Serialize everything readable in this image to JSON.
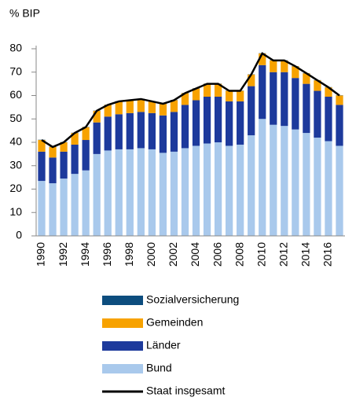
{
  "chart_data": {
    "type": "bar",
    "stacked": true,
    "y_label": "% BIP",
    "categories": [
      "1990",
      null,
      "1992",
      null,
      "1994",
      null,
      "1996",
      null,
      "1998",
      null,
      "2000",
      null,
      "2002",
      null,
      "2004",
      null,
      "2006",
      null,
      "2008",
      null,
      "2010",
      null,
      "2012",
      null,
      "2014",
      null,
      "2016",
      null
    ],
    "series": [
      {
        "name": "Bund",
        "color": "#a9c9ec",
        "values": [
          23.5,
          22.5,
          24.5,
          26.5,
          28,
          35,
          36.5,
          37,
          37,
          37.5,
          37,
          35.5,
          36,
          37.5,
          38.5,
          39.5,
          40,
          38.5,
          39,
          43,
          50,
          47.5,
          47,
          45.5,
          44,
          42,
          40.5,
          38.5
        ]
      },
      {
        "name": "Länder",
        "color": "#1d3a9c",
        "values": [
          12.5,
          11,
          11.5,
          12.5,
          13,
          13.5,
          14.5,
          15,
          15.5,
          15.5,
          15.5,
          16,
          17,
          18.5,
          19.5,
          20,
          19.5,
          19,
          18.5,
          21,
          23,
          22.5,
          23,
          22,
          21,
          20,
          19,
          17.5
        ]
      },
      {
        "name": "Gemeinden",
        "color": "#f7a200",
        "values": [
          5,
          4.5,
          4,
          5,
          5.5,
          5,
          5,
          5.5,
          5.5,
          5.5,
          5,
          5,
          5,
          5,
          5,
          5.5,
          5.5,
          4.5,
          4.5,
          5,
          5,
          5,
          5,
          5,
          4.5,
          4.5,
          4,
          4
        ]
      },
      {
        "name": "Sozialversicherung",
        "color": "#0d4d7e",
        "values": [
          0.1,
          0.1,
          0.1,
          0.1,
          0.1,
          0.1,
          0.1,
          0.1,
          0.1,
          0.1,
          0.1,
          0.1,
          0.1,
          0.1,
          0.1,
          0.1,
          0.1,
          0.1,
          0.1,
          0.1,
          0.1,
          0.1,
          0.1,
          0.1,
          0.1,
          0.1,
          0.1,
          0.1
        ]
      }
    ],
    "line": {
      "name": "Staat insgesamt",
      "color": "#000000",
      "values": [
        41,
        38,
        40,
        44,
        46.5,
        53.5,
        56,
        57.5,
        58,
        58.5,
        57.5,
        56.5,
        58,
        61,
        63,
        65,
        65,
        62,
        62,
        69,
        78,
        75,
        75,
        72.5,
        69.5,
        66.5,
        63.5,
        60
      ]
    },
    "ylim": [
      0,
      80
    ],
    "yticks": [
      0,
      10,
      20,
      30,
      40,
      50,
      60,
      70,
      80
    ]
  }
}
